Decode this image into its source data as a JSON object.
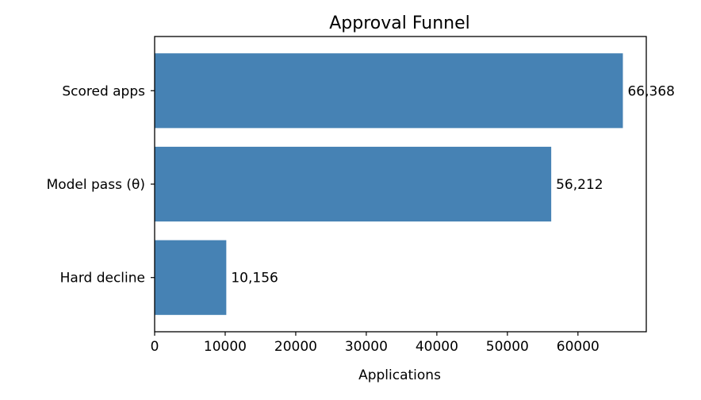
{
  "chart_data": {
    "type": "bar",
    "orientation": "horizontal",
    "title": "Approval Funnel",
    "xlabel": "Applications",
    "ylabel": "",
    "categories": [
      "Hard decline",
      "Model pass (θ)",
      "Scored apps"
    ],
    "values": [
      10156,
      56212,
      66368
    ],
    "data_labels": [
      "10,156",
      "56,212",
      "66,368"
    ],
    "xlim": [
      0,
      69686
    ],
    "xticks": [
      0,
      10000,
      20000,
      30000,
      40000,
      50000,
      60000
    ],
    "xtick_labels": [
      "0",
      "10000",
      "20000",
      "30000",
      "40000",
      "50000",
      "60000"
    ],
    "grid": false,
    "legend": "none",
    "bar_color": "#4682b4"
  }
}
